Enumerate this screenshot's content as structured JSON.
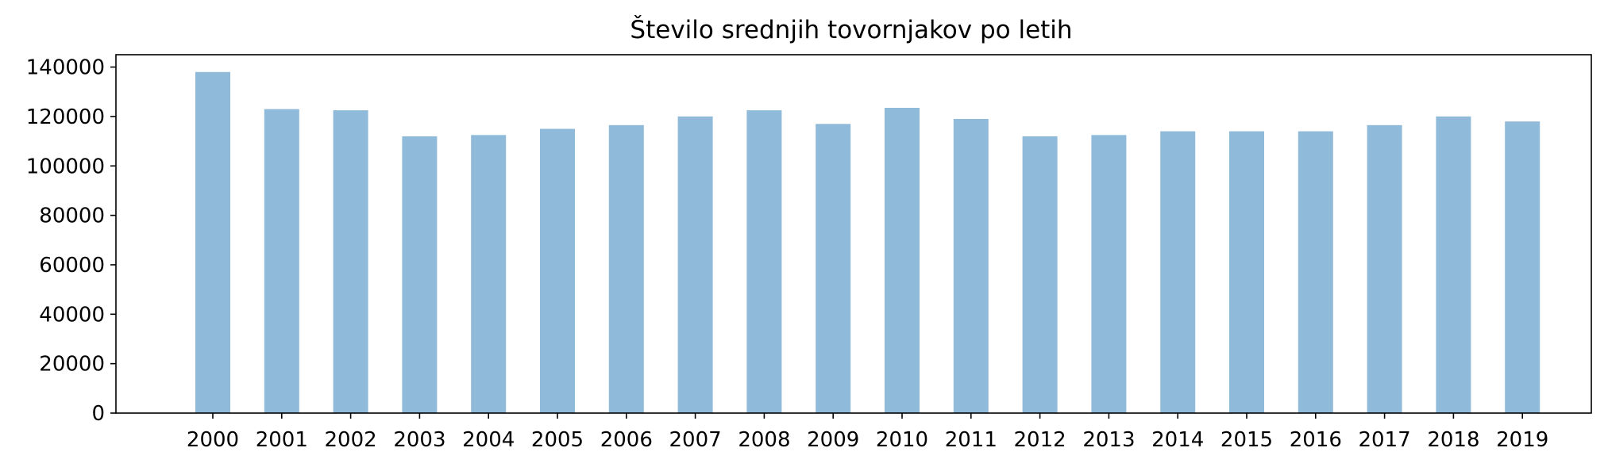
{
  "chart_data": {
    "type": "bar",
    "title": "Število srednjih tovornjakov po letih",
    "xlabel": "",
    "ylabel": "",
    "categories": [
      "2000",
      "2001",
      "2002",
      "2003",
      "2004",
      "2005",
      "2006",
      "2007",
      "2008",
      "2009",
      "2010",
      "2011",
      "2012",
      "2013",
      "2014",
      "2015",
      "2016",
      "2017",
      "2018",
      "2019"
    ],
    "values": [
      138000,
      123000,
      122500,
      112000,
      112500,
      115000,
      116500,
      120000,
      122500,
      117000,
      123500,
      119000,
      112000,
      112500,
      114000,
      114000,
      114000,
      116500,
      120000,
      118000
    ],
    "ylim": [
      0,
      145000
    ],
    "yticks": [
      0,
      20000,
      40000,
      60000,
      80000,
      100000,
      120000,
      140000
    ],
    "bar_color": "#8fbad9",
    "grid": false,
    "legend": "none"
  }
}
